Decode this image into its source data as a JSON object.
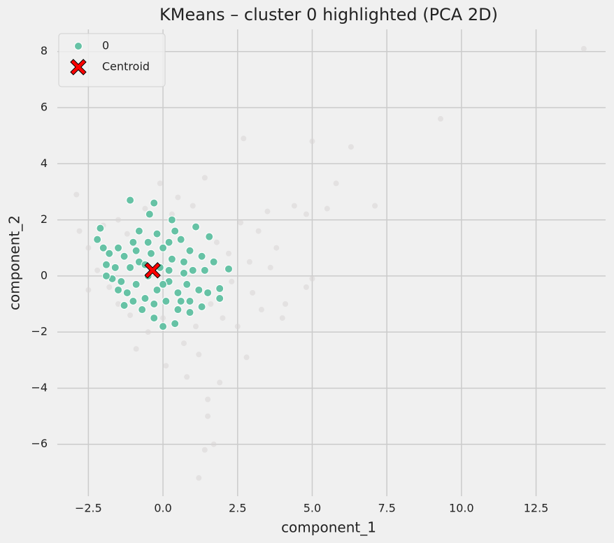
{
  "chart_data": {
    "type": "scatter",
    "title": "KMeans – cluster 0 highlighted (PCA 2D)",
    "x_label": "component_1",
    "y_label": "component_2",
    "xlim": [
      -3.54,
      14.83
    ],
    "ylim": [
      -7.85,
      8.79
    ],
    "xticks": [
      {
        "value": -2.5,
        "label": "−2.5"
      },
      {
        "value": 0,
        "label": "0.0"
      },
      2.5,
      {
        "value": 5,
        "label": "5.0"
      },
      7.5,
      {
        "value": 10,
        "label": "10.0"
      },
      12.5
    ],
    "yticks": [
      {
        "value": -6,
        "label": "−6"
      },
      {
        "value": -4,
        "label": "−4"
      },
      {
        "value": -2,
        "label": "−2"
      },
      0,
      2,
      4,
      6,
      8
    ],
    "grid": true,
    "legend": "upper left",
    "series": [
      {
        "color": "#d8d6d6",
        "marker": "o",
        "x": [
          14.1,
          9.3,
          5.8,
          6.3,
          5.0,
          2.7,
          7.1,
          4.8,
          5.5,
          4.4,
          3.5,
          1.4,
          -0.1,
          -2.9,
          1.4,
          1.7,
          1.2,
          1.5,
          1.5,
          1.9,
          3.0,
          4.8,
          5.0,
          4.0,
          2.8,
          0.1,
          0.8,
          -1.1,
          -2.5,
          3.8,
          3.2,
          2.6,
          2.2,
          2.0,
          1.2,
          -0.5,
          -1.5,
          -2.0,
          -2.5,
          -2.8,
          0.5,
          1.0,
          -1.5,
          2.5,
          3.3,
          3.6,
          2.9,
          1.8,
          0.7,
          -0.9,
          -1.8,
          0.3,
          -0.6,
          1.6,
          2.3,
          4.1,
          -2.2,
          0.0,
          1.1,
          -1.2
        ],
        "y": [
          8.1,
          5.6,
          3.3,
          4.6,
          4.8,
          4.9,
          2.5,
          2.2,
          2.4,
          2.5,
          2.3,
          3.5,
          3.3,
          2.9,
          -6.2,
          -6.0,
          -7.2,
          -5.0,
          -4.4,
          -3.8,
          -0.6,
          -0.4,
          -0.1,
          -1.5,
          -2.9,
          -3.2,
          -3.6,
          -1.4,
          -0.5,
          1.0,
          1.6,
          1.9,
          0.8,
          -1.5,
          -2.8,
          -2.0,
          -1.0,
          1.8,
          1.0,
          1.6,
          2.8,
          2.5,
          2.0,
          -1.8,
          -1.2,
          0.3,
          0.5,
          1.2,
          -2.4,
          -2.6,
          -0.4,
          2.2,
          2.4,
          -1.0,
          -0.2,
          -1.0,
          0.2,
          -1.5,
          -1.8,
          1.5
        ]
      },
      {
        "name": "0",
        "color": "#66c2a5",
        "marker": "o",
        "x": [
          -1.1,
          -0.3,
          -0.45,
          -2.1,
          -2.2,
          -1.9,
          2.2,
          1.9,
          1.9,
          1.3,
          0,
          0.4,
          -0.3,
          -1.3,
          0.3,
          1.1,
          1.55,
          1.3,
          1.7,
          -0.8,
          -0.5,
          0.0,
          0.6,
          0.9,
          -1.5,
          -1.8,
          -1.6,
          -1.4,
          -1.7,
          -1.2,
          -0.9,
          -0.6,
          -0.2,
          0.2,
          0.5,
          0.8,
          1.0,
          0.7,
          0.3,
          -0.1,
          -0.5,
          -0.8,
          -1.1,
          -1.3,
          -1.0,
          -0.4,
          0.1,
          0.5,
          0.9,
          1.2,
          -0.7,
          -1.0,
          -0.2,
          0.4,
          0.7,
          -2.0,
          -1.9,
          -0.6,
          0.2,
          0.0,
          -0.3,
          0.6,
          1.5,
          1.4,
          -1.5,
          0.9,
          -0.9,
          0.2
        ],
        "y": [
          2.7,
          2.6,
          2.2,
          1.7,
          1.3,
          0.4,
          0.25,
          -0.45,
          -0.8,
          -1.1,
          -1.8,
          -1.7,
          -1.5,
          -1.05,
          2.0,
          1.75,
          1.4,
          0.7,
          0.5,
          1.6,
          1.2,
          1.0,
          1.3,
          0.9,
          1.0,
          0.8,
          0.3,
          -0.2,
          -0.1,
          -0.6,
          -0.3,
          -0.8,
          -0.5,
          -0.2,
          -0.6,
          -0.3,
          0.2,
          0.5,
          0.6,
          0.3,
          0.0,
          0.5,
          0.3,
          0.7,
          1.2,
          0.8,
          -0.9,
          -1.2,
          -0.9,
          -0.5,
          -1.2,
          -0.9,
          1.5,
          1.6,
          0.1,
          1.0,
          0.0,
          0.4,
          0.2,
          -0.3,
          -1.0,
          -0.9,
          -0.6,
          0.2,
          -0.5,
          -1.3,
          0.9,
          1.2
        ]
      },
      {
        "name": "Centroid",
        "color": "#ff0000",
        "marker": "X",
        "x": [
          -0.35
        ],
        "y": [
          0.2
        ]
      }
    ]
  }
}
